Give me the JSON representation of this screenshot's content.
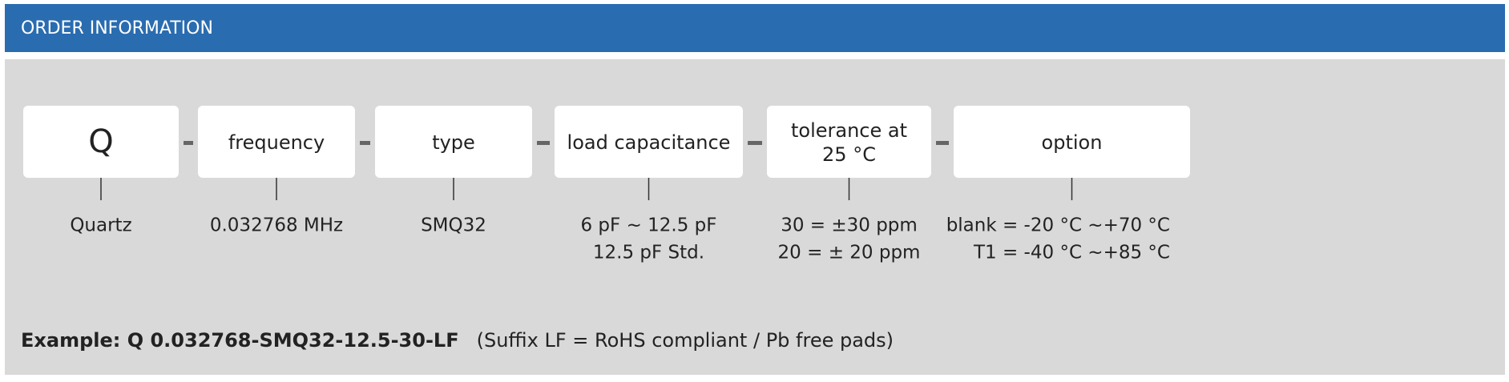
{
  "header": {
    "title": "ORDER INFORMATION"
  },
  "boxes": [
    {
      "label": [
        "Q"
      ],
      "description": [
        "Quartz"
      ]
    },
    {
      "label": [
        "frequency"
      ],
      "description": [
        "0.032768 MHz"
      ]
    },
    {
      "label": [
        "type"
      ],
      "description": [
        "SMQ32"
      ]
    },
    {
      "label": [
        "load capacitance"
      ],
      "description": [
        "6 pF ~ 12.5 pF",
        "12.5 pF Std."
      ]
    },
    {
      "label": [
        "tolerance at",
        "25 °C"
      ],
      "description": [
        "30 = ±30 ppm",
        "20 = ± 20 ppm"
      ]
    },
    {
      "label": [
        "option"
      ],
      "description": [
        "blank =  -20 °C ~+70 °C",
        "T1 = -40 °C ~+85 °C"
      ]
    }
  ],
  "example": {
    "code": "Example: Q 0.032768-SMQ32-12.5-30-LF",
    "note": "(Suffix LF = RoHS compliant / Pb free pads)"
  }
}
